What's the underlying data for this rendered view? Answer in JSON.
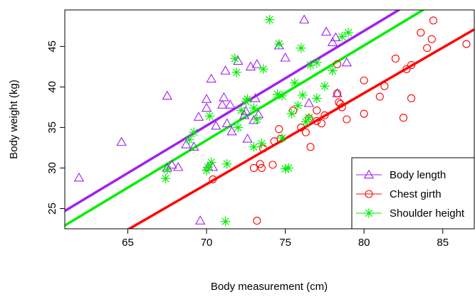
{
  "chart_data": {
    "type": "scatter",
    "xlabel": "Body measurement (cm)",
    "ylabel": "Body weight (kg)",
    "xlim": [
      61,
      87
    ],
    "ylim": [
      22.5,
      49.5
    ],
    "xticks": [
      65,
      70,
      75,
      80,
      85
    ],
    "yticks": [
      25,
      30,
      35,
      40,
      45
    ],
    "grid": false,
    "legend_position": "bottom-right",
    "series": [
      {
        "name": "Body length",
        "color": "#A020F0",
        "marker": "triangle",
        "points": [
          [
            61.9,
            28.8
          ],
          [
            64.6,
            33.2
          ],
          [
            67.5,
            38.9
          ],
          [
            67.5,
            30
          ],
          [
            67.8,
            30.4
          ],
          [
            68.2,
            30.1
          ],
          [
            68.7,
            32.9
          ],
          [
            69.2,
            32.6
          ],
          [
            69.5,
            36.3
          ],
          [
            69.6,
            23.5
          ],
          [
            70,
            37.4
          ],
          [
            70,
            38.5
          ],
          [
            70.1,
            30.1
          ],
          [
            70.3,
            41
          ],
          [
            70.4,
            30.1
          ],
          [
            70.6,
            35.2
          ],
          [
            71,
            37.8
          ],
          [
            71.1,
            38.7
          ],
          [
            71.2,
            42
          ],
          [
            71.3,
            35.5
          ],
          [
            71.5,
            37.8
          ],
          [
            71.6,
            34.5
          ],
          [
            72,
            43.2
          ],
          [
            72.4,
            36.5
          ],
          [
            72.5,
            37
          ],
          [
            72.6,
            33.6
          ],
          [
            72.8,
            42.5
          ],
          [
            73,
            35.9
          ],
          [
            73.1,
            38.6
          ],
          [
            73.2,
            42.8
          ],
          [
            73.3,
            36.6
          ],
          [
            74.6,
            45.1
          ],
          [
            75,
            43.6
          ],
          [
            76.2,
            48.3
          ],
          [
            76.5,
            38
          ],
          [
            77.6,
            46.8
          ],
          [
            78,
            45.5
          ],
          [
            78.2,
            46.1
          ],
          [
            78.3,
            39.2
          ],
          [
            78.9,
            43
          ]
        ]
      },
      {
        "name": "Chest girth",
        "color": "#FF0000",
        "marker": "circle",
        "points": [
          [
            70.4,
            28.6
          ],
          [
            73,
            30
          ],
          [
            73.2,
            23.5
          ],
          [
            73.4,
            30.5
          ],
          [
            73.5,
            30
          ],
          [
            73.6,
            32.4
          ],
          [
            74.2,
            30.4
          ],
          [
            74.3,
            33.3
          ],
          [
            74.6,
            34.8
          ],
          [
            74.7,
            33.6
          ],
          [
            75.5,
            37.1
          ],
          [
            76,
            35
          ],
          [
            76.3,
            34.4
          ],
          [
            76.5,
            36.1
          ],
          [
            76.6,
            32.6
          ],
          [
            77,
            35.8
          ],
          [
            77,
            37.1
          ],
          [
            77.3,
            35.5
          ],
          [
            77.5,
            36.5
          ],
          [
            78.3,
            42.8
          ],
          [
            78.3,
            39.2
          ],
          [
            78.4,
            38.1
          ],
          [
            78.5,
            37.9
          ],
          [
            78.6,
            37.5
          ],
          [
            78.9,
            36
          ],
          [
            80,
            36.7
          ],
          [
            80,
            40.8
          ],
          [
            81,
            38.8
          ],
          [
            81.3,
            40.1
          ],
          [
            81.5,
            30.3
          ],
          [
            82,
            43.5
          ],
          [
            82.5,
            36.2
          ],
          [
            82.7,
            42.2
          ],
          [
            83,
            38.6
          ],
          [
            83,
            42.7
          ],
          [
            83.6,
            46.7
          ],
          [
            84,
            44.8
          ],
          [
            84.3,
            45.9
          ],
          [
            84.4,
            48.2
          ],
          [
            86.5,
            45.3
          ]
        ]
      },
      {
        "name": "Shoulder height",
        "color": "#00EE00",
        "marker": "asterisk",
        "points": [
          [
            67.4,
            28.7
          ],
          [
            67.5,
            29.8
          ],
          [
            68.9,
            33.5
          ],
          [
            69.2,
            34.4
          ],
          [
            70,
            29.7
          ],
          [
            70.1,
            30.1
          ],
          [
            70.2,
            36.4
          ],
          [
            70.3,
            30.7
          ],
          [
            71.2,
            23.4
          ],
          [
            71.3,
            30.5
          ],
          [
            71.8,
            43.5
          ],
          [
            71.9,
            41.8
          ],
          [
            72,
            35
          ],
          [
            72.2,
            37.1
          ],
          [
            72.5,
            38.2
          ],
          [
            72.6,
            38.5
          ],
          [
            73,
            32.6
          ],
          [
            73,
            37.4
          ],
          [
            73.2,
            36
          ],
          [
            73.5,
            33
          ],
          [
            73.6,
            42.2
          ],
          [
            74,
            48.3
          ],
          [
            74.5,
            39.1
          ],
          [
            74.6,
            45.3
          ],
          [
            74.8,
            38.9
          ],
          [
            74.8,
            33.7
          ],
          [
            75,
            29.9
          ],
          [
            75.2,
            30
          ],
          [
            75.4,
            36.7
          ],
          [
            75.6,
            40.5
          ],
          [
            75.8,
            37.7
          ],
          [
            76,
            44.8
          ],
          [
            76.1,
            39
          ],
          [
            76.3,
            35.7
          ],
          [
            76.5,
            36.2
          ],
          [
            76.6,
            42.7
          ],
          [
            77,
            43
          ],
          [
            77,
            38.6
          ],
          [
            77.5,
            40.1
          ],
          [
            78,
            42
          ],
          [
            78.6,
            46.2
          ],
          [
            79,
            46.7
          ]
        ]
      }
    ],
    "fit_lines": [
      {
        "name": "Body length",
        "color": "#A020F0",
        "x": [
          61,
          87
        ],
        "y": [
          24.7,
          55.1
        ]
      },
      {
        "name": "Chest girth",
        "color": "#FF0000",
        "x": [
          61,
          87
        ],
        "y": [
          17.9,
          47.1
        ]
      },
      {
        "name": "Shoulder height",
        "color": "#00EE00",
        "x": [
          61,
          87
        ],
        "y": [
          22.9,
          53.3
        ]
      }
    ]
  }
}
